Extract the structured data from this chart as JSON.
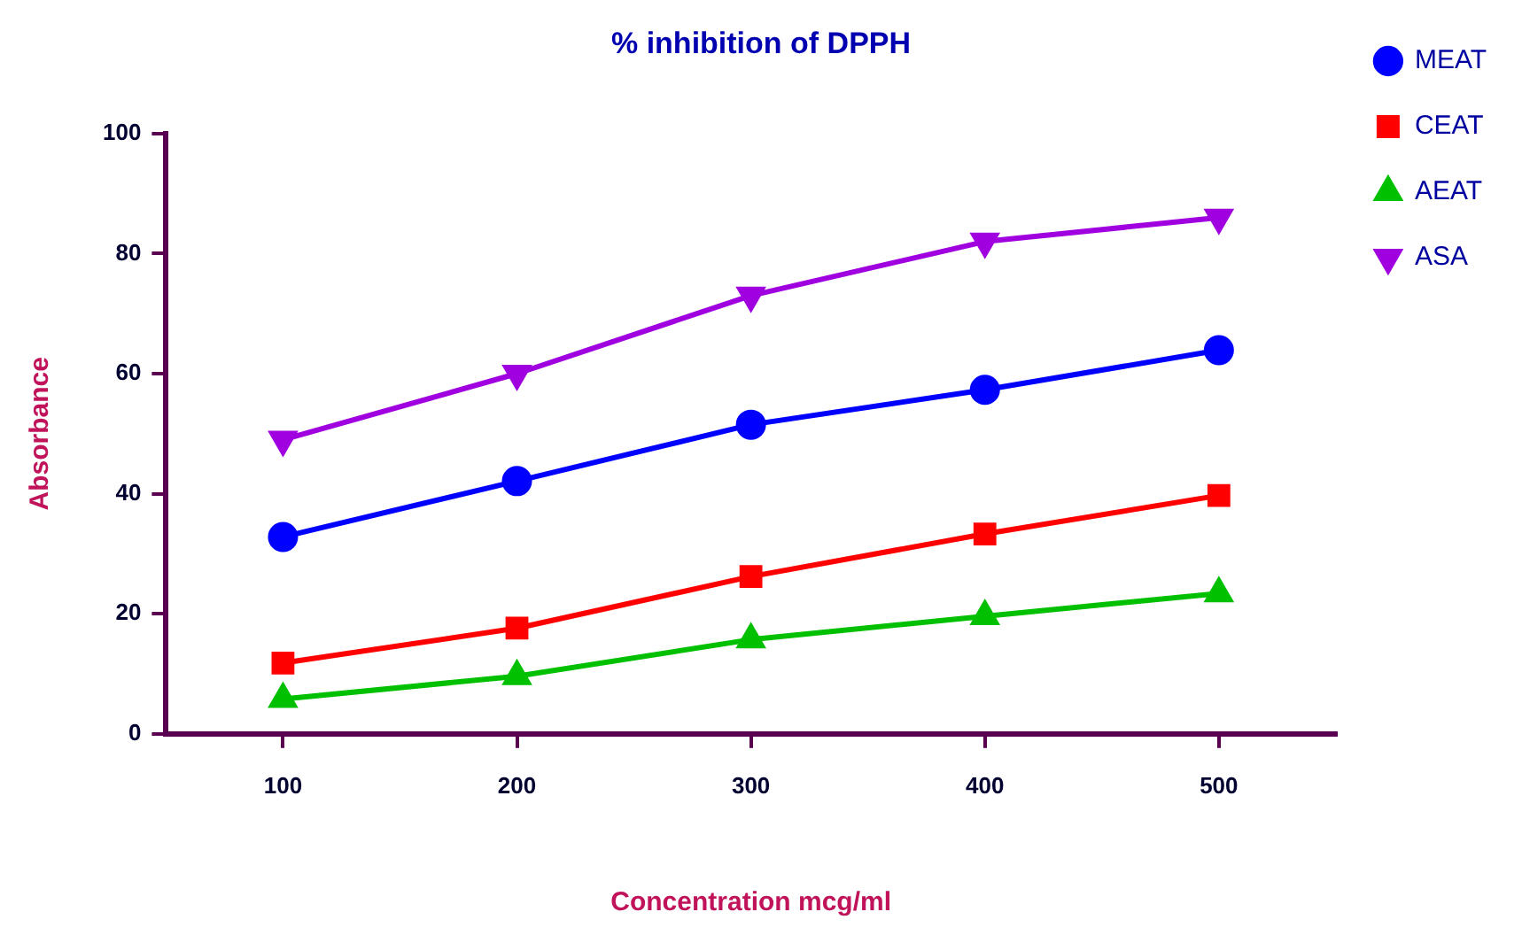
{
  "chart_data": {
    "type": "line",
    "title": "% inhibition of DPPH",
    "xlabel": "Concentration mcg/ml",
    "ylabel": "Absorbance",
    "categories": [
      "100",
      "200",
      "300",
      "400",
      "500"
    ],
    "series": [
      {
        "name": "MEAT",
        "color": "#0000ff",
        "marker": "circle",
        "values": [
          32.8,
          42.1,
          51.5,
          57.3,
          63.9
        ]
      },
      {
        "name": "CEAT",
        "color": "#ff0000",
        "marker": "square",
        "values": [
          11.8,
          17.6,
          26.2,
          33.3,
          39.7
        ]
      },
      {
        "name": "AEAT",
        "color": "#00c000",
        "marker": "triangle",
        "values": [
          5.8,
          9.6,
          15.7,
          19.6,
          23.4
        ]
      },
      {
        "name": "ASA",
        "color": "#a000e0",
        "marker": "triangle-down",
        "values": [
          49,
          60,
          73,
          82,
          86
        ]
      }
    ],
    "ylim": [
      0,
      100
    ],
    "yticks": [
      0,
      20,
      40,
      60,
      80,
      100
    ],
    "grid": false,
    "legend": "right",
    "line_style": "solid"
  }
}
